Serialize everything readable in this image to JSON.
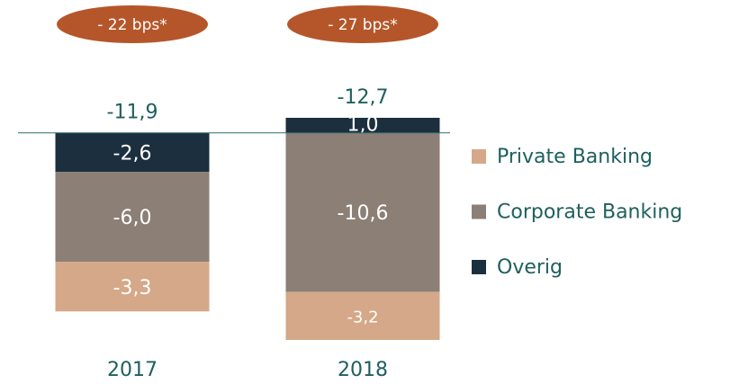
{
  "chart_data": {
    "type": "bar",
    "stacked": true,
    "categories": [
      "2017",
      "2018"
    ],
    "annotations": [
      "- 22 bps*",
      "- 27 bps*"
    ],
    "annotation_color": "#b5562a",
    "totals": {
      "values": [
        -11.9,
        -12.7
      ],
      "value_labels": [
        "-11,9",
        "-12,7"
      ]
    },
    "series": [
      {
        "name": "Private Banking",
        "color": "#d4a888",
        "values": [
          -3.3,
          -3.2
        ],
        "value_labels": [
          "-3,3",
          "-3,2"
        ]
      },
      {
        "name": "Corporate Banking",
        "color": "#8c7f76",
        "values": [
          -6.0,
          -10.6
        ],
        "value_labels": [
          "-6,0",
          "-10,6"
        ]
      },
      {
        "name": "Overig",
        "color": "#1c2f3e",
        "values": [
          -2.6,
          1.0
        ],
        "value_labels": [
          "-2,6",
          "1,0"
        ]
      }
    ],
    "legend": "right"
  }
}
